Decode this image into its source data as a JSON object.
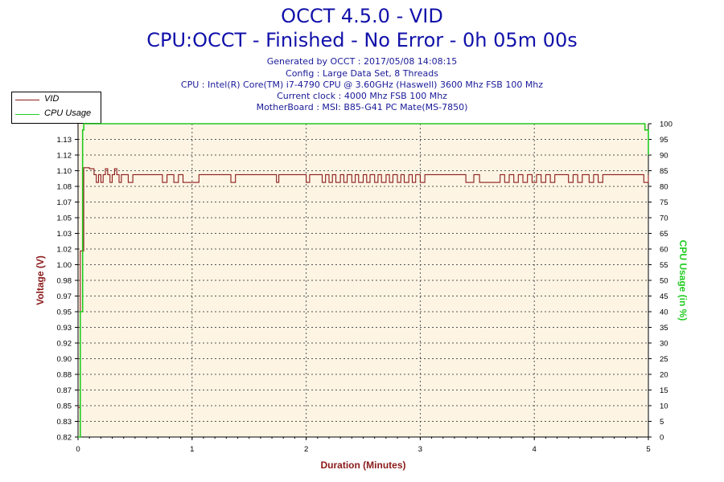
{
  "header": {
    "title": "OCCT 4.5.0 - VID",
    "subtitle": "CPU:OCCT - Finished - No Error - 0h 05m 00s",
    "info_lines": [
      "Generated by OCCT : 2017/05/08 14:08:15",
      "Config : Large Data Set, 8 Threads",
      "CPU : Intel(R) Core(TM) i7-4790 CPU @ 3.60GHz (Haswell) 3600 Mhz FSB 100 Mhz",
      "Current clock : 4000 Mhz FSB 100 Mhz",
      "MotherBoard : MSI: B85-G41 PC Mate(MS-7850)"
    ]
  },
  "legend": [
    {
      "label": "VID",
      "color": "#8b1a1a"
    },
    {
      "label": "CPU Usage",
      "color": "#22cc22"
    }
  ],
  "chart_data": {
    "type": "line",
    "xlabel": "Duration (Minutes)",
    "ylabel": "Voltage (V)",
    "y2label": "CPU Usage (in %)",
    "xlim": [
      0,
      5
    ],
    "ylim": [
      0.82,
      1.14
    ],
    "y2lim": [
      0,
      100
    ],
    "x_ticks": [
      "0",
      "1",
      "2",
      "3",
      "4",
      "5"
    ],
    "y_ticks": [
      "0.82",
      "0.83",
      "0.85",
      "0.87",
      "0.88",
      "0.90",
      "0.92",
      "0.93",
      "0.95",
      "0.97",
      "0.98",
      "1.00",
      "1.02",
      "1.03",
      "1.05",
      "1.07",
      "1.08",
      "1.10",
      "1.12",
      "1.13"
    ],
    "y2_ticks": [
      "0",
      "5",
      "10",
      "15",
      "20",
      "25",
      "30",
      "35",
      "40",
      "45",
      "50",
      "55",
      "60",
      "65",
      "70",
      "75",
      "80",
      "85",
      "90",
      "95",
      "100"
    ],
    "grid": true,
    "legend_position": "top-left",
    "series": [
      {
        "name": "VID",
        "axis": "left",
        "color": "#8b1a1a",
        "x": [
          0.0,
          0.02,
          0.05,
          0.08,
          0.1,
          0.12,
          0.14,
          0.16,
          0.18,
          0.2,
          0.22,
          0.24,
          0.26,
          0.28,
          0.3,
          0.32,
          0.34,
          0.36,
          0.38,
          0.4,
          0.44,
          0.48,
          0.52,
          0.7,
          0.74,
          0.78,
          0.84,
          0.88,
          0.92,
          1.06,
          1.34,
          1.38,
          1.74,
          1.76,
          2.0,
          2.03,
          2.1,
          2.14,
          2.17,
          2.2,
          2.23,
          2.26,
          2.3,
          2.33,
          2.36,
          2.4,
          2.43,
          2.46,
          2.5,
          2.53,
          2.56,
          2.6,
          2.63,
          2.66,
          2.7,
          2.73,
          2.76,
          2.8,
          2.83,
          2.86,
          2.9,
          2.93,
          2.96,
          3.0,
          3.04,
          3.36,
          3.4,
          3.47,
          3.52,
          3.7,
          3.74,
          3.78,
          3.82,
          3.86,
          3.9,
          3.94,
          3.98,
          4.02,
          4.06,
          4.1,
          4.14,
          4.18,
          4.22,
          4.26,
          4.3,
          4.34,
          4.38,
          4.42,
          4.48,
          4.52,
          4.56,
          4.6,
          4.64,
          4.68,
          4.72,
          4.76,
          4.8,
          4.84,
          4.88,
          4.92,
          4.96,
          5.0
        ],
        "values": [
          0.85,
          1.01,
          1.095,
          1.095,
          1.094,
          1.094,
          1.088,
          1.08,
          1.088,
          1.08,
          1.088,
          1.094,
          1.088,
          1.08,
          1.088,
          1.094,
          1.088,
          1.08,
          1.088,
          1.088,
          1.08,
          1.088,
          1.088,
          1.088,
          1.08,
          1.088,
          1.08,
          1.088,
          1.08,
          1.088,
          1.08,
          1.088,
          1.08,
          1.088,
          1.08,
          1.088,
          1.088,
          1.08,
          1.088,
          1.08,
          1.088,
          1.08,
          1.088,
          1.08,
          1.088,
          1.08,
          1.088,
          1.08,
          1.088,
          1.08,
          1.088,
          1.08,
          1.088,
          1.08,
          1.088,
          1.08,
          1.088,
          1.08,
          1.088,
          1.08,
          1.088,
          1.08,
          1.088,
          1.08,
          1.088,
          1.088,
          1.08,
          1.088,
          1.08,
          1.088,
          1.08,
          1.088,
          1.08,
          1.088,
          1.08,
          1.088,
          1.08,
          1.088,
          1.08,
          1.088,
          1.08,
          1.088,
          1.088,
          1.088,
          1.08,
          1.088,
          1.08,
          1.088,
          1.08,
          1.088,
          1.08,
          1.088,
          1.088,
          1.088,
          1.088,
          1.088,
          1.088,
          1.088,
          1.088,
          1.088,
          1.08,
          1.088
        ]
      },
      {
        "name": "CPU Usage",
        "axis": "right",
        "color": "#22cc22",
        "x": [
          0.0,
          0.02,
          0.04,
          0.05,
          4.95,
          4.97,
          5.0
        ],
        "values": [
          0,
          40,
          98,
          100,
          100,
          98,
          90
        ]
      }
    ]
  }
}
